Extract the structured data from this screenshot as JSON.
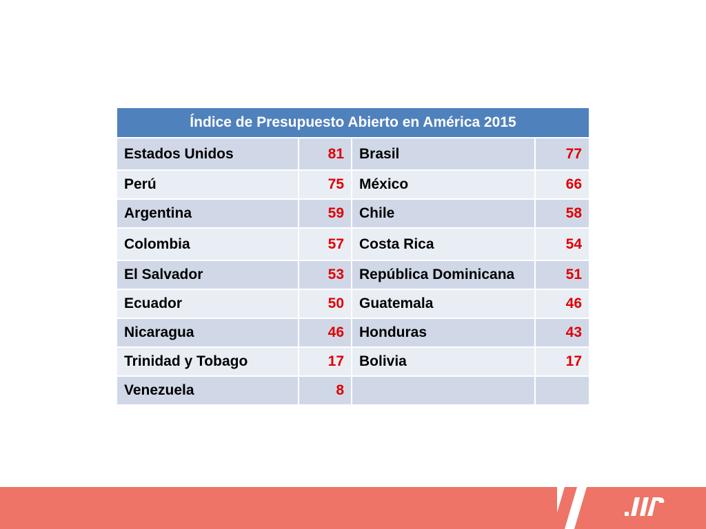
{
  "table": {
    "title": "Índice de Presupuesto Abierto en América 2015",
    "rows": [
      {
        "c1": "Estados Unidos",
        "v1": "81",
        "c2": "Brasil",
        "v2": "77"
      },
      {
        "c1": "Perú",
        "v1": "75",
        "c2": "México",
        "v2": "66"
      },
      {
        "c1": "Argentina",
        "v1": "59",
        "c2": "Chile",
        "v2": "58"
      },
      {
        "c1": "Colombia",
        "v1": "57",
        "c2": "Costa Rica",
        "v2": "54"
      },
      {
        "c1": "El Salvador",
        "v1": "53",
        "c2": "República Dominicana",
        "v2": "51"
      },
      {
        "c1": "Ecuador",
        "v1": "50",
        "c2": "Guatemala",
        "v2": "46"
      },
      {
        "c1": "Nicaragua",
        "v1": "46",
        "c2": "Honduras",
        "v2": "43"
      },
      {
        "c1": "Trinidad y Tobago",
        "v1": "17",
        "c2": "Bolivia",
        "v2": "17"
      },
      {
        "c1": "Venezuela",
        "v1": "8",
        "c2": "",
        "v2": ""
      }
    ]
  },
  "colors": {
    "header_bg": "#4f81bd",
    "row_dark": "#d0d8e8",
    "row_light": "#e9edf4",
    "value_text": "#e00000",
    "footer_bar": "#ed7467"
  },
  "footer": {
    "logo_icon": "brand-logo-icon"
  }
}
